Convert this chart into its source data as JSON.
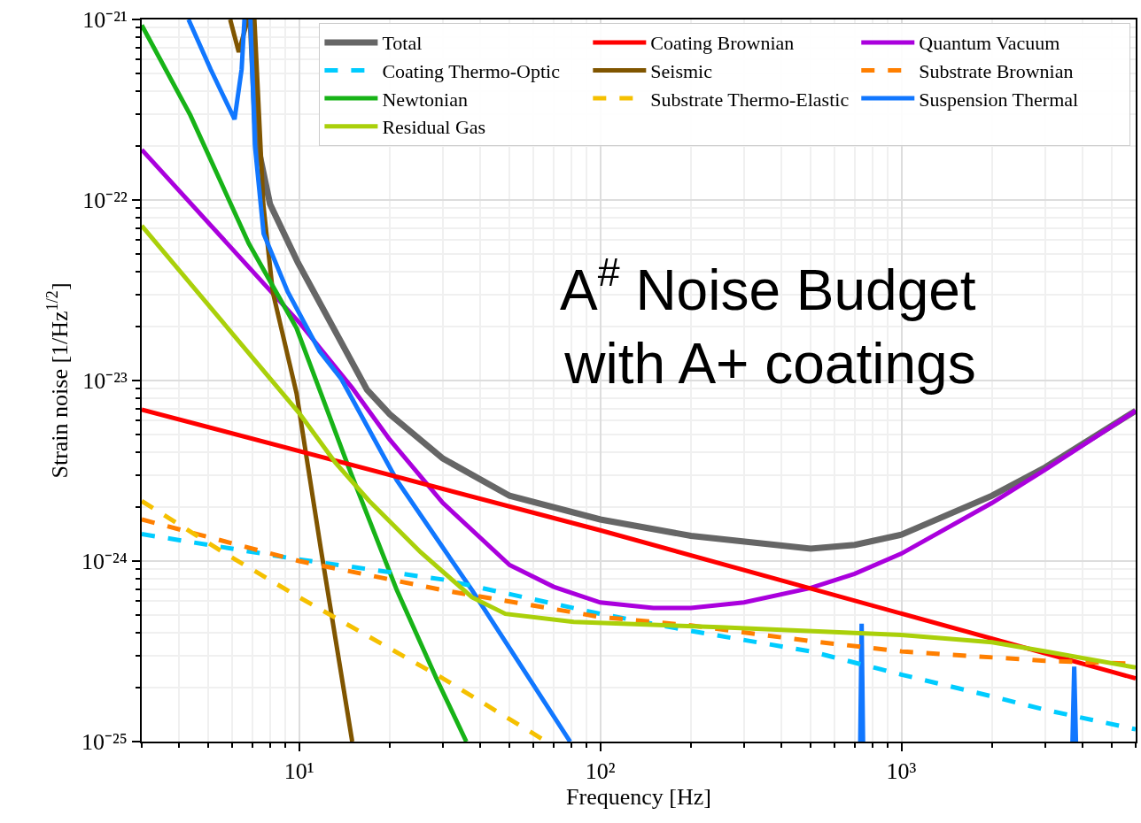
{
  "chart_data": {
    "type": "line",
    "xlabel": "Frequency [Hz]",
    "ylabel": "Strain noise [1/Hz$^{1/2}$]",
    "log": "xy",
    "grid": true,
    "legend": "top right",
    "xlim": [
      3,
      6000
    ],
    "ylim": [
      1e-25,
      1e-21
    ],
    "xticks": [
      {
        "value": 10,
        "label": "10¹"
      },
      {
        "value": 100,
        "label": "10²"
      },
      {
        "value": 1000,
        "label": "10³"
      }
    ],
    "yticks": [
      {
        "value": 1e-25,
        "label": "10⁻²⁵"
      },
      {
        "value": 1e-24,
        "label": "10⁻²⁴"
      },
      {
        "value": 1e-23,
        "label": "10⁻²³"
      },
      {
        "value": 1e-22,
        "label": "10⁻²²"
      },
      {
        "value": 1e-21,
        "label": "10⁻²¹"
      }
    ],
    "annotations": [
      "A$^{#}$ Noise Budget\nwith A+ coatings"
    ],
    "series": [
      {
        "name": "Total",
        "color": "#666666",
        "line_style": "solid",
        "x": [
          6.9,
          7.2,
          8.0,
          9.9,
          16.8,
          20,
          30,
          50,
          100,
          200,
          500,
          700,
          1000,
          2000,
          3000,
          6000
        ],
        "values": [
          1e-21,
          2.2e-22,
          9.5e-23,
          4.5e-23,
          8.9e-24,
          6.5e-24,
          3.7e-24,
          2.3e-24,
          1.7e-24,
          1.38e-24,
          1.17e-24,
          1.23e-24,
          1.4e-24,
          2.3e-24,
          3.3e-24,
          6.8e-24
        ]
      },
      {
        "name": "Quantum Vacuum",
        "color": "#aa00dd",
        "line_style": "solid",
        "x": [
          3,
          10,
          15,
          20,
          30,
          50,
          70,
          100,
          150,
          200,
          300,
          500,
          700,
          1000,
          2000,
          3000,
          6000
        ],
        "values": [
          1.9e-22,
          2.1e-23,
          9.1e-24,
          4.7e-24,
          2.1e-24,
          9.5e-25,
          7.2e-25,
          5.9e-25,
          5.5e-25,
          5.5e-25,
          5.9e-25,
          7.1e-25,
          8.5e-25,
          1.1e-24,
          2.1e-24,
          3.2e-24,
          6.8e-24
        ]
      },
      {
        "name": "Seismic",
        "color": "#805500",
        "line_style": "solid",
        "x": [
          5.9,
          6.3,
          6.75,
          7.0,
          7.1,
          7.6,
          8.17,
          9.8,
          11.8,
          15.0
        ],
        "values": [
          1e-21,
          6.6e-22,
          1e-21,
          null,
          1e-21,
          9.5e-23,
          3.1e-23,
          8.5e-24,
          1.17e-24,
          1e-25
        ]
      },
      {
        "name": "Newtonian",
        "color": "#17b317",
        "line_style": "solid",
        "x": [
          3,
          4.35,
          6.8,
          9.8,
          14.6,
          21.1,
          28.7,
          35.9
        ],
        "values": [
          9.3e-22,
          2.95e-22,
          5.75e-23,
          1.95e-23,
          3.3e-24,
          6.9e-25,
          2.2e-25,
          1e-25
        ]
      },
      {
        "name": "Suspension Thermal",
        "color": "#1177ff",
        "line_style": "solid",
        "x": [
          4.29,
          5.08,
          6.1,
          6.44,
          6.58,
          6.7,
          6.89,
          7.13,
          7.62,
          9.16,
          11.7,
          13.8,
          21.1,
          37.5,
          79.4,
          200,
          730,
          738,
          746,
          1000,
          3700,
          3750,
          3800
        ],
        "values": [
          1e-21,
          5.3e-22,
          2.8e-22,
          5.3e-22,
          1e-21,
          null,
          1e-21,
          2e-22,
          6.5e-23,
          3.1e-23,
          1.45e-23,
          1.02e-23,
          2.8e-24,
          6.9e-25,
          1e-25,
          null,
          1e-25,
          4.5e-25,
          1e-25,
          null,
          1e-25,
          2.6e-25,
          1e-25
        ]
      },
      {
        "name": "Coating Brownian",
        "color": "#ff0000",
        "line_style": "solid",
        "x": [
          3,
          100,
          6000
        ],
        "values": [
          6.9e-24,
          1.48e-24,
          2.24e-25
        ]
      },
      {
        "name": "Coating Thermo-Optic",
        "color": "#00ccff",
        "line_style": "dashed",
        "x": [
          3,
          10,
          30,
          100,
          200,
          500,
          1000,
          2000,
          3000,
          6000
        ],
        "values": [
          1.41e-24,
          1.02e-24,
          7.9e-25,
          5.1e-25,
          4.1e-25,
          3.16e-25,
          2.35e-25,
          1.78e-25,
          1.5e-25,
          1.17e-25
        ]
      },
      {
        "name": "Substrate Brownian",
        "color": "#ff7f00",
        "line_style": "dashed",
        "x": [
          3,
          10,
          30,
          100,
          200,
          500,
          1000,
          3000,
          6000
        ],
        "values": [
          1.7e-24,
          1e-24,
          6.9e-25,
          4.9e-25,
          4.4e-25,
          3.6e-25,
          3.16e-25,
          2.8e-25,
          2.7e-25
        ]
      },
      {
        "name": "Substrate Thermo-Elastic",
        "color": "#f5c000",
        "line_style": "dashed",
        "x": [
          3,
          5.58,
          10,
          30,
          66.2
        ],
        "values": [
          2.15e-24,
          1.12e-24,
          6.3e-25,
          2.24e-25,
          1e-25
        ]
      },
      {
        "name": "Residual Gas",
        "color": "#aad00a",
        "line_style": "solid",
        "x": [
          3,
          10,
          13.2,
          17.1,
          25.3,
          37.5,
          48.4,
          81.6,
          249,
          1000,
          2000,
          3000,
          6000
        ],
        "values": [
          7.2e-23,
          6.6e-24,
          3.5e-24,
          2.15e-24,
          1.12e-24,
          6.3e-25,
          5.1e-25,
          4.6e-25,
          4.3e-25,
          3.9e-25,
          3.55e-25,
          3.16e-25,
          2.57e-25
        ]
      }
    ]
  }
}
